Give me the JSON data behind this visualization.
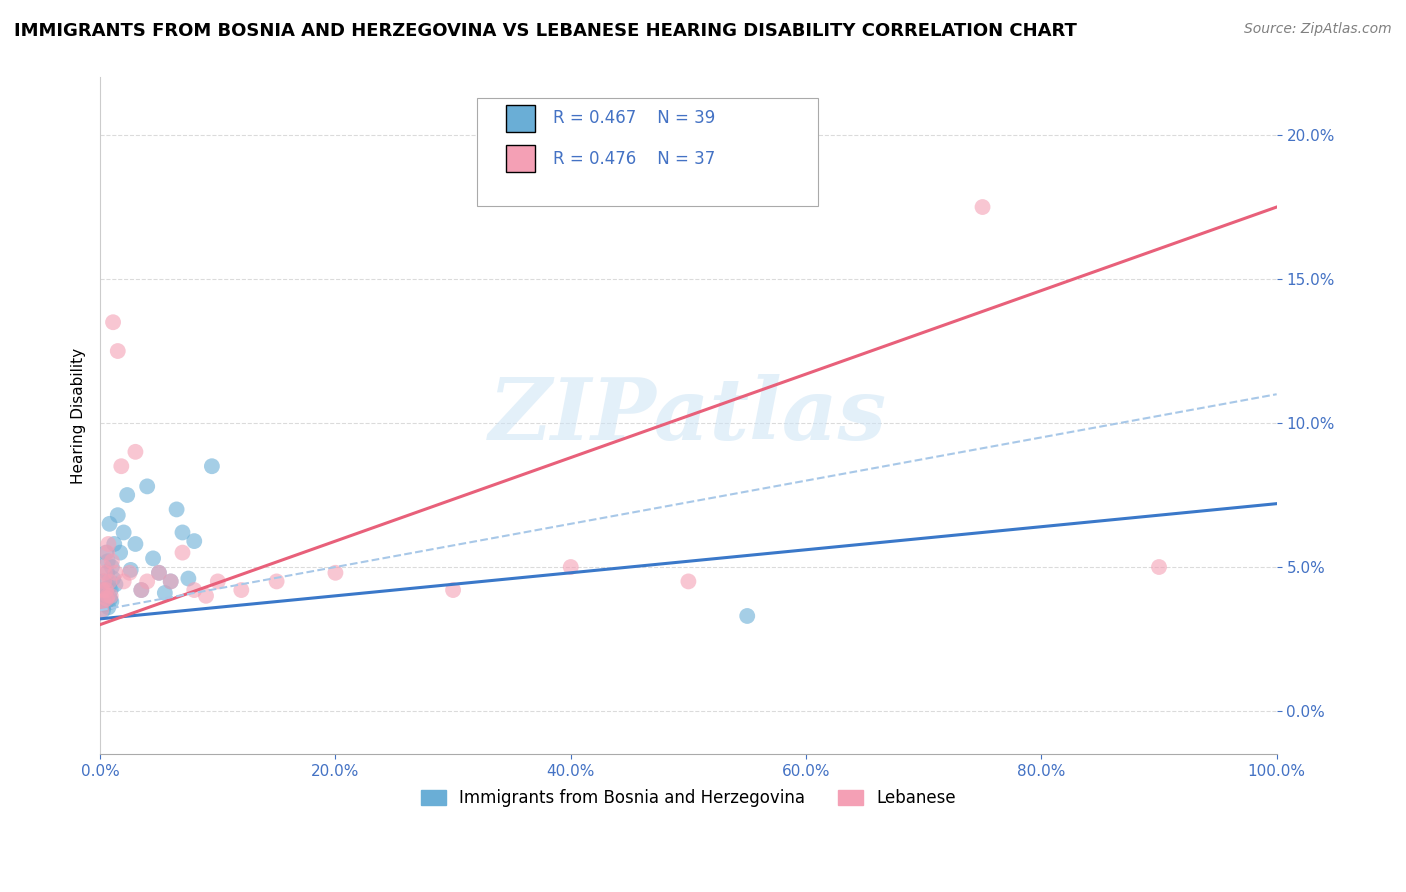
{
  "title": "IMMIGRANTS FROM BOSNIA AND HERZEGOVINA VS LEBANESE HEARING DISABILITY CORRELATION CHART",
  "source": "Source: ZipAtlas.com",
  "ylabel": "Hearing Disability",
  "legend_label_1": "Immigrants from Bosnia and Herzegovina",
  "legend_label_2": "Lebanese",
  "R1": 0.467,
  "N1": 39,
  "R2": 0.476,
  "N2": 37,
  "xlim": [
    0.0,
    100.0
  ],
  "ylim": [
    -1.5,
    22.0
  ],
  "yticks": [
    0.0,
    5.0,
    10.0,
    15.0,
    20.0
  ],
  "xticks": [
    0.0,
    20.0,
    40.0,
    60.0,
    80.0,
    100.0
  ],
  "color_bosnia": "#6aaed6",
  "color_lebanese": "#f4a0b5",
  "color_regression_bosnia": "#3a78c9",
  "color_regression_lebanese": "#e8607a",
  "color_dashed": "#a8c8e8",
  "color_axis_labels": "#4472c4",
  "background_color": "#ffffff",
  "grid_color": "#cccccc",
  "bosnia_x": [
    0.15,
    0.2,
    0.25,
    0.3,
    0.35,
    0.4,
    0.45,
    0.5,
    0.55,
    0.6,
    0.65,
    0.7,
    0.75,
    0.8,
    0.85,
    0.9,
    0.95,
    1.0,
    1.1,
    1.2,
    1.3,
    1.5,
    1.7,
    2.0,
    2.3,
    2.6,
    3.0,
    3.5,
    4.0,
    4.5,
    5.0,
    5.5,
    6.0,
    6.5,
    7.0,
    7.5,
    8.0,
    9.5,
    55.0
  ],
  "bosnia_y": [
    3.8,
    4.2,
    3.5,
    4.5,
    3.9,
    4.1,
    3.7,
    5.5,
    4.0,
    4.8,
    5.2,
    3.6,
    4.3,
    6.5,
    3.9,
    4.2,
    3.8,
    5.0,
    4.6,
    5.8,
    4.4,
    6.8,
    5.5,
    6.2,
    7.5,
    4.9,
    5.8,
    4.2,
    7.8,
    5.3,
    4.8,
    4.1,
    4.5,
    7.0,
    6.2,
    4.6,
    5.9,
    8.5,
    3.3
  ],
  "lebanese_x": [
    0.1,
    0.2,
    0.25,
    0.3,
    0.35,
    0.4,
    0.5,
    0.55,
    0.6,
    0.65,
    0.7,
    0.8,
    0.9,
    1.0,
    1.1,
    1.3,
    1.5,
    1.8,
    2.0,
    2.5,
    3.0,
    3.5,
    4.0,
    5.0,
    6.0,
    7.0,
    8.0,
    9.0,
    10.0,
    12.0,
    15.0,
    20.0,
    30.0,
    40.0,
    50.0,
    75.0,
    90.0
  ],
  "lebanese_y": [
    3.5,
    4.2,
    3.8,
    5.0,
    4.5,
    4.8,
    4.2,
    3.9,
    5.5,
    4.0,
    5.8,
    4.5,
    4.0,
    5.2,
    13.5,
    4.8,
    12.5,
    8.5,
    4.5,
    4.8,
    9.0,
    4.2,
    4.5,
    4.8,
    4.5,
    5.5,
    4.2,
    4.0,
    4.5,
    4.2,
    4.5,
    4.8,
    4.2,
    5.0,
    4.5,
    17.5,
    5.0
  ],
  "watermark_text": "ZIPatlas",
  "title_fontsize": 13,
  "axis_label_fontsize": 11,
  "tick_fontsize": 11,
  "legend_fontsize": 12,
  "source_fontsize": 10,
  "regression_bosnia_start_y": 3.2,
  "regression_bosnia_end_y": 7.2,
  "regression_lebanese_start_y": 3.0,
  "regression_lebanese_end_y": 17.5,
  "dashed_start_y": 3.5,
  "dashed_end_y": 11.0
}
